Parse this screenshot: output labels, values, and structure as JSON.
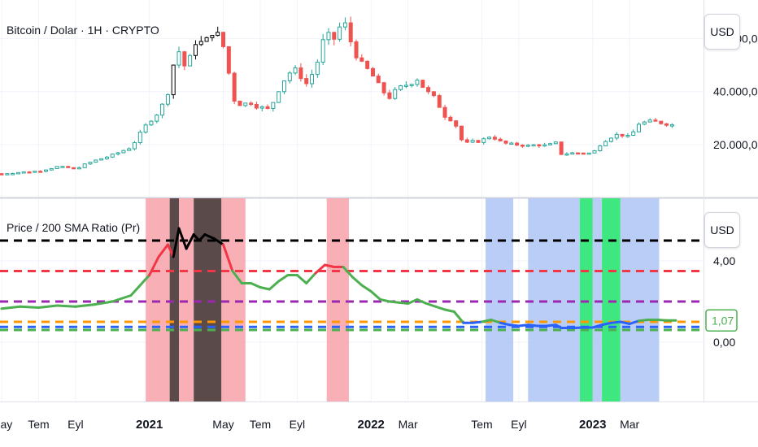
{
  "price_pane": {
    "title": "Bitcoin / Dolar · 1H · CRYPTO",
    "currency": "USD"
  },
  "ratio_pane": {
    "title": "Price / 200 SMA Ratio (Pr)",
    "currency": "USD",
    "last_value_label": "1,07"
  },
  "colors": {
    "up": "#26a69a",
    "down": "#ef5350",
    "dark_candle": "#000000",
    "ratio_line": "#4caf50",
    "ratio_high": "#f23645",
    "ratio_extreme": "#000000",
    "ratio_low": "#2962ff",
    "band_red": "#f7a1a8",
    "band_dark": "#3e2a2a",
    "band_blue": "#aec4f5",
    "band_green": "#1de36a"
  },
  "chart_data": [
    {
      "type": "candlestick",
      "title": "Bitcoin / Dolar · 1H · CRYPTO",
      "y_axis_ticks": [
        "20.000,00",
        "40.000,00",
        "60.000,00"
      ],
      "y_ticks_values": [
        20000,
        40000,
        60000
      ],
      "ylim": [
        0,
        70000
      ],
      "x_tick_labels": [
        "May",
        "Tem",
        "Eyl",
        "2021",
        "May",
        "Tem",
        "Eyl",
        "2022",
        "Mar",
        "Tem",
        "Eyl",
        "2023",
        "Mar"
      ],
      "x_tick_month_index": [
        0,
        2,
        4,
        8,
        12,
        14,
        16,
        20,
        22,
        26,
        28,
        32,
        34
      ],
      "x_range_month_index": [
        0,
        38
      ],
      "close_series_month_index": [
        [
          0,
          9000
        ],
        [
          1,
          9500
        ],
        [
          2,
          10000
        ],
        [
          3,
          11600
        ],
        [
          4,
          11000
        ],
        [
          5,
          13800
        ],
        [
          6,
          16000
        ],
        [
          7,
          19000
        ],
        [
          8,
          29000
        ],
        [
          8.6,
          33000
        ],
        [
          9,
          40000
        ],
        [
          9.5,
          57000
        ],
        [
          10,
          48000
        ],
        [
          10.5,
          59000
        ],
        [
          11,
          58000
        ],
        [
          11.5,
          64000
        ],
        [
          12,
          57000
        ],
        [
          12.3,
          47000
        ],
        [
          12.6,
          37000
        ],
        [
          13,
          35000
        ],
        [
          13.5,
          36000
        ],
        [
          14,
          34000
        ],
        [
          14.5,
          33000
        ],
        [
          15,
          41000
        ],
        [
          15.5,
          47000
        ],
        [
          16,
          48000
        ],
        [
          16.5,
          43000
        ],
        [
          17,
          49000
        ],
        [
          17.5,
          61000
        ],
        [
          18,
          60000
        ],
        [
          18.5,
          67000
        ],
        [
          19,
          57000
        ],
        [
          19.5,
          50000
        ],
        [
          20,
          47000
        ],
        [
          20.5,
          41000
        ],
        [
          21,
          38000
        ],
        [
          21.5,
          41000
        ],
        [
          22,
          43000
        ],
        [
          22.5,
          45000
        ],
        [
          23,
          40000
        ],
        [
          23.5,
          37000
        ],
        [
          24,
          31000
        ],
        [
          24.5,
          29000
        ],
        [
          25,
          20000
        ],
        [
          25.5,
          21000
        ],
        [
          26,
          21500
        ],
        [
          26.5,
          23500
        ],
        [
          27,
          21000
        ],
        [
          27.5,
          20000
        ],
        [
          28,
          20000
        ],
        [
          28.5,
          19500
        ],
        [
          29,
          20000
        ],
        [
          29.5,
          19500
        ],
        [
          30,
          20500
        ],
        [
          30.3,
          16500
        ],
        [
          31,
          16800
        ],
        [
          31.5,
          16900
        ],
        [
          32,
          16600
        ],
        [
          32.5,
          21000
        ],
        [
          33,
          23000
        ],
        [
          33.5,
          24000
        ],
        [
          34,
          22500
        ],
        [
          34.5,
          28000
        ],
        [
          35,
          28500
        ],
        [
          35.5,
          28500
        ],
        [
          36,
          28000
        ],
        [
          36.5,
          27000
        ]
      ]
    },
    {
      "type": "line",
      "title": "Price / 200 SMA Ratio (Pr)",
      "y_axis_ticks": [
        "0,00",
        "4,00"
      ],
      "y_ticks_values": [
        0,
        4
      ],
      "ylim": [
        0,
        6
      ],
      "current_value": 1.07,
      "threshold_lines": [
        {
          "value": 5.0,
          "color": "#000000"
        },
        {
          "value": 3.5,
          "color": "#f23645"
        },
        {
          "value": 2.0,
          "color": "#9c27b0"
        },
        {
          "value": 1.0,
          "color": "#ff9800"
        },
        {
          "value": 0.75,
          "color": "#2962ff"
        },
        {
          "value": 0.6,
          "color": "#4caf50"
        }
      ],
      "ratio_series_month_index": [
        [
          0,
          1.65
        ],
        [
          1,
          1.75
        ],
        [
          2,
          1.7
        ],
        [
          3,
          1.8
        ],
        [
          4,
          1.75
        ],
        [
          5,
          1.85
        ],
        [
          6,
          2.0
        ],
        [
          7,
          2.3
        ],
        [
          8,
          3.3
        ],
        [
          8.5,
          4.2
        ],
        [
          9,
          4.8
        ],
        [
          9.3,
          4.2
        ],
        [
          9.6,
          5.6
        ],
        [
          10,
          4.6
        ],
        [
          10.4,
          5.3
        ],
        [
          10.7,
          5.0
        ],
        [
          11,
          5.3
        ],
        [
          11.5,
          5.1
        ],
        [
          12,
          4.8
        ],
        [
          12.5,
          3.5
        ],
        [
          13,
          2.9
        ],
        [
          13.5,
          2.9
        ],
        [
          14,
          2.7
        ],
        [
          14.5,
          2.6
        ],
        [
          15,
          3.0
        ],
        [
          15.5,
          3.3
        ],
        [
          16,
          3.3
        ],
        [
          16.5,
          2.9
        ],
        [
          17,
          3.4
        ],
        [
          17.5,
          3.8
        ],
        [
          18,
          3.7
        ],
        [
          18.5,
          3.7
        ],
        [
          19,
          3.2
        ],
        [
          19.5,
          2.8
        ],
        [
          20,
          2.5
        ],
        [
          20.5,
          2.1
        ],
        [
          21,
          2.0
        ],
        [
          21.5,
          1.95
        ],
        [
          22,
          1.9
        ],
        [
          22.5,
          2.1
        ],
        [
          23,
          1.9
        ],
        [
          23.5,
          1.75
        ],
        [
          24,
          1.6
        ],
        [
          24.5,
          1.5
        ],
        [
          25,
          0.95
        ],
        [
          25.5,
          0.95
        ],
        [
          26,
          1.0
        ],
        [
          26.5,
          1.1
        ],
        [
          27,
          0.95
        ],
        [
          27.5,
          0.85
        ],
        [
          28,
          0.8
        ],
        [
          28.5,
          0.85
        ],
        [
          29,
          0.8
        ],
        [
          29.5,
          0.8
        ],
        [
          30,
          0.85
        ],
        [
          30.3,
          0.7
        ],
        [
          31,
          0.7
        ],
        [
          31.5,
          0.72
        ],
        [
          32,
          0.72
        ],
        [
          32.5,
          0.85
        ],
        [
          33,
          0.95
        ],
        [
          33.5,
          1.0
        ],
        [
          34,
          0.9
        ],
        [
          34.5,
          1.05
        ],
        [
          35,
          1.1
        ],
        [
          35.5,
          1.1
        ],
        [
          36,
          1.07
        ],
        [
          36.5,
          1.07
        ]
      ],
      "background_bands_month_index": [
        {
          "from": 7.8,
          "to": 9.1,
          "color": "#f7a1a8"
        },
        {
          "from": 9.1,
          "to": 9.6,
          "color": "#3e2a2a"
        },
        {
          "from": 9.6,
          "to": 10.4,
          "color": "#f7a1a8"
        },
        {
          "from": 10.4,
          "to": 11.9,
          "color": "#3e2a2a"
        },
        {
          "from": 11.9,
          "to": 13.2,
          "color": "#f7a1a8"
        },
        {
          "from": 17.6,
          "to": 18.8,
          "color": "#f7a1a8"
        },
        {
          "from": 26.2,
          "to": 27.7,
          "color": "#aec4f5"
        },
        {
          "from": 28.5,
          "to": 31.3,
          "color": "#aec4f5"
        },
        {
          "from": 31.3,
          "to": 32.0,
          "color": "#1de36a"
        },
        {
          "from": 32.0,
          "to": 32.5,
          "color": "#aec4f5"
        },
        {
          "from": 32.5,
          "to": 33.5,
          "color": "#1de36a"
        },
        {
          "from": 33.5,
          "to": 35.6,
          "color": "#aec4f5"
        }
      ]
    }
  ]
}
